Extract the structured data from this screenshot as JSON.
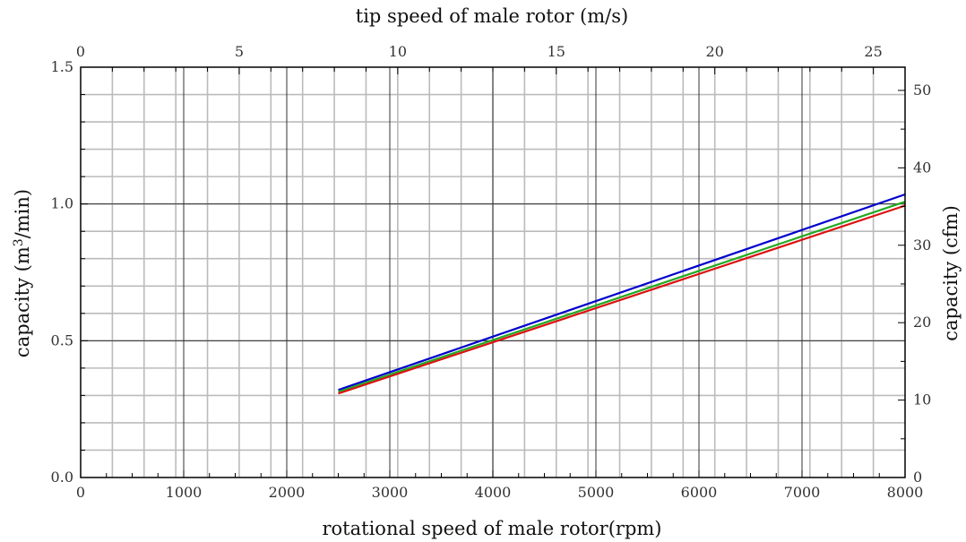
{
  "chart_data": {
    "type": "line",
    "xlabel": "rotational speed of male rotor(rpm)",
    "x2label": "tip speed of male rotor (m/s)",
    "ylabel_left_pre": "capacity (m",
    "ylabel_left_sup": "3",
    "ylabel_left_post": "/min)",
    "ylabel_right": "capacity (cfm)",
    "xlim": [
      0,
      8000
    ],
    "x2lim": [
      0,
      26
    ],
    "ylim": [
      0,
      1.5
    ],
    "y2lim": [
      0,
      53
    ],
    "x_ticks": [
      "0",
      "1000",
      "2000",
      "3000",
      "4000",
      "5000",
      "6000",
      "7000",
      "8000"
    ],
    "x2_ticks": [
      "0",
      "5",
      "10",
      "15",
      "20",
      "25"
    ],
    "y_ticks": [
      "0.0",
      "0.5",
      "1.0",
      "1.5"
    ],
    "y2_ticks": [
      "0",
      "10",
      "20",
      "30",
      "40",
      "50"
    ],
    "grid": true,
    "series": [
      {
        "color": "#0000cc",
        "x": [
          2500,
          8000
        ],
        "y": [
          0.32,
          1.035
        ]
      },
      {
        "color": "#22aa22",
        "x": [
          2500,
          8000
        ],
        "y": [
          0.313,
          1.008
        ]
      },
      {
        "color": "#dd1111",
        "x": [
          2500,
          8000
        ],
        "y": [
          0.307,
          0.994
        ]
      }
    ]
  }
}
